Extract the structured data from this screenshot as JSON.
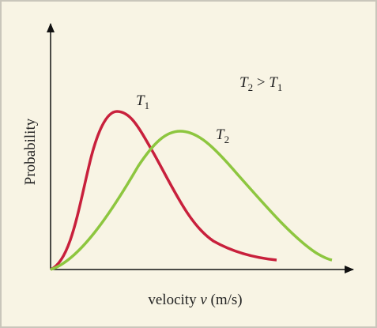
{
  "y_axis_label": "Probability",
  "x_axis_label": {
    "prefix": "velocity ",
    "symbol": "v",
    "suffix": " (m/s)"
  },
  "curves": [
    {
      "symbol": "T",
      "subscript": "1"
    },
    {
      "symbol": "T",
      "subscript": "2"
    }
  ],
  "relation": {
    "left": {
      "symbol": "T",
      "subscript": "2"
    },
    "operator": " > ",
    "right": {
      "symbol": "T",
      "subscript": "1"
    }
  }
}
